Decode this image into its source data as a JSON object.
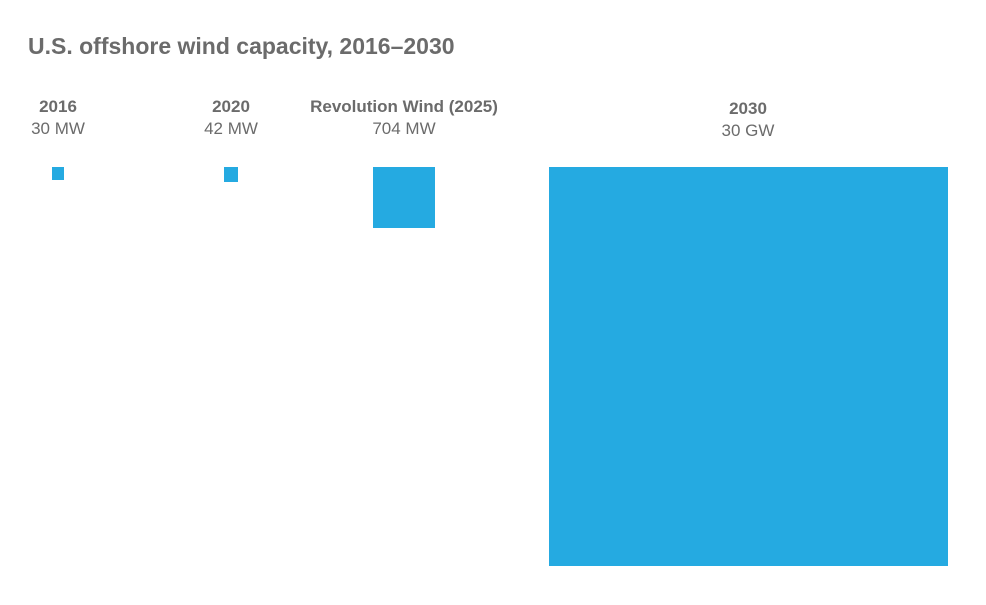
{
  "chart_data": {
    "type": "proportional-area",
    "title": "U.S. offshore wind capacity, 2016–2030",
    "color": "#25aae1",
    "items": [
      {
        "label": "2016",
        "value_label": "30 MW",
        "value_mw": 30
      },
      {
        "label": "2020",
        "value_label": "42 MW",
        "value_mw": 42
      },
      {
        "label": "Revolution Wind (2025)",
        "value_label": "704 MW",
        "value_mw": 704
      },
      {
        "label": "2030",
        "value_label": "30 GW",
        "value_mw": 30000
      }
    ]
  }
}
